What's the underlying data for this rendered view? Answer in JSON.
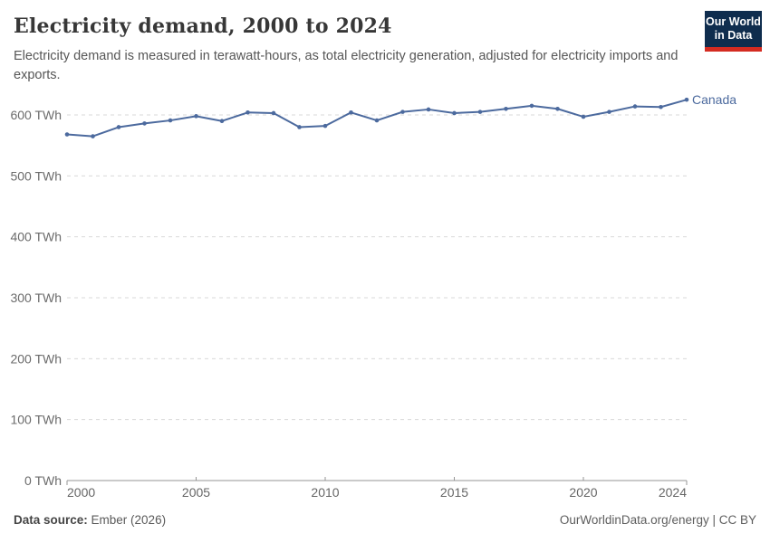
{
  "header": {
    "title": "Electricity demand, 2000 to 2024",
    "subtitle": "Electricity demand is measured in terawatt-hours, as total electricity generation, adjusted for electricity imports and exports.",
    "logo_line1": "Our World",
    "logo_line2": "in Data"
  },
  "chart_data": {
    "type": "line",
    "title": "Electricity demand, 2000 to 2024",
    "xlabel": "",
    "ylabel": "TWh",
    "xlim": [
      2000,
      2024
    ],
    "ylim": [
      0,
      640
    ],
    "grid": "horizontal-dashed",
    "legend_position": "end-of-line",
    "x_ticks": [
      2000,
      2005,
      2010,
      2015,
      2020,
      2024
    ],
    "y_ticks": [
      0,
      100,
      200,
      300,
      400,
      500,
      600
    ],
    "y_tick_suffix": " TWh",
    "series": [
      {
        "name": "Canada",
        "color": "#4c6a9e",
        "x": [
          2000,
          2001,
          2002,
          2003,
          2004,
          2005,
          2006,
          2007,
          2008,
          2009,
          2010,
          2011,
          2012,
          2013,
          2014,
          2015,
          2016,
          2017,
          2018,
          2019,
          2020,
          2021,
          2022,
          2023,
          2024
        ],
        "values": [
          568,
          565,
          580,
          586,
          591,
          598,
          590,
          604,
          603,
          580,
          582,
          604,
          591,
          605,
          609,
          603,
          605,
          610,
          615,
          610,
          597,
          605,
          614,
          613,
          625
        ]
      }
    ]
  },
  "footer": {
    "datasource_label": "Data source:",
    "datasource_value": " Ember (2026)",
    "credit": "OurWorldinData.org/energy | CC BY"
  },
  "colors": {
    "line": "#4c6a9e",
    "grid": "#d9d9d9",
    "axis": "#969696",
    "tick_label": "#6b6b6b",
    "x_tick_label": "#666666",
    "logo_bg": "#0f2d4e",
    "logo_stripe": "#d42b21"
  }
}
